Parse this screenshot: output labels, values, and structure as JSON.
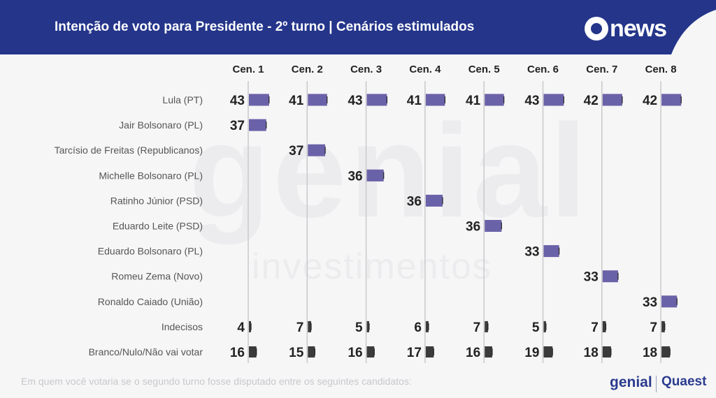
{
  "header": {
    "title": "Intenção de voto para Presidente - 2º turno | Cenários estimulados",
    "logo": "news"
  },
  "watermark": {
    "main": "genial",
    "sub": "investimentos"
  },
  "footnote": "Em quem você votaria se o segundo turno fosse disputado entre os seguintes candidatos:",
  "brands": {
    "left": "genial",
    "right": "Quaest"
  },
  "colors": {
    "header": "#24358a",
    "candidate_bar": "#6a62a8",
    "other_bar": "#3b3b3b",
    "gridline": "#c9c9cc"
  },
  "chart_data": {
    "type": "bar",
    "title": "Intenção de voto para Presidente - 2º turno | Cenários estimulados",
    "scenarios": [
      "Cen. 1",
      "Cen. 2",
      "Cen. 3",
      "Cen. 4",
      "Cen. 5",
      "Cen. 6",
      "Cen. 7",
      "Cen. 8"
    ],
    "rows": [
      {
        "label": "Lula (PT)",
        "kind": "candidate",
        "values": [
          43,
          41,
          43,
          41,
          41,
          43,
          42,
          42
        ]
      },
      {
        "label": "Jair Bolsonaro (PL)",
        "kind": "candidate",
        "values": [
          37,
          null,
          null,
          null,
          null,
          null,
          null,
          null
        ]
      },
      {
        "label": "Tarcísio de Freitas (Republicanos)",
        "kind": "candidate",
        "values": [
          null,
          37,
          null,
          null,
          null,
          null,
          null,
          null
        ]
      },
      {
        "label": "Michelle Bolsonaro (PL)",
        "kind": "candidate",
        "values": [
          null,
          null,
          36,
          null,
          null,
          null,
          null,
          null
        ]
      },
      {
        "label": "Ratinho Júnior (PSD)",
        "kind": "candidate",
        "values": [
          null,
          null,
          null,
          36,
          null,
          null,
          null,
          null
        ]
      },
      {
        "label": "Eduardo Leite (PSD)",
        "kind": "candidate",
        "values": [
          null,
          null,
          null,
          null,
          36,
          null,
          null,
          null
        ]
      },
      {
        "label": "Eduardo Bolsonaro (PL)",
        "kind": "candidate",
        "values": [
          null,
          null,
          null,
          null,
          null,
          33,
          null,
          null
        ]
      },
      {
        "label": "Romeu Zema (Novo)",
        "kind": "candidate",
        "values": [
          null,
          null,
          null,
          null,
          null,
          null,
          33,
          null
        ]
      },
      {
        "label": "Ronaldo Caiado (União)",
        "kind": "candidate",
        "values": [
          null,
          null,
          null,
          null,
          null,
          null,
          null,
          33
        ]
      },
      {
        "label": "Indecisos",
        "kind": "other",
        "values": [
          4,
          7,
          5,
          6,
          7,
          5,
          7,
          7
        ]
      },
      {
        "label": "Branco/Nulo/Não vai votar",
        "kind": "other",
        "values": [
          16,
          15,
          16,
          17,
          16,
          19,
          18,
          18
        ]
      }
    ]
  }
}
